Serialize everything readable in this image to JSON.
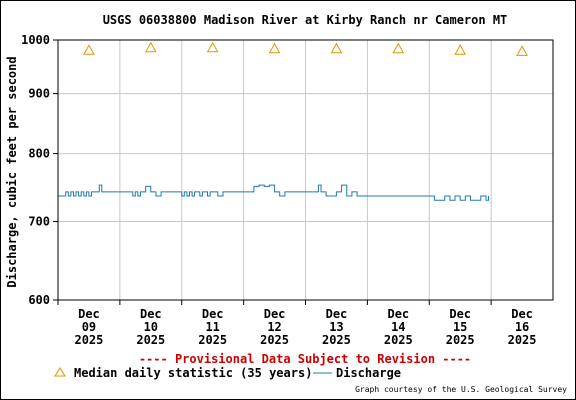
{
  "colors": {
    "median": "#e69500",
    "discharge": "#1f78b4",
    "provisional": "#cc0000",
    "grid": "#c8c8c8"
  },
  "chart_data": {
    "type": "line",
    "title": "USGS 06038800 Madison River at Kirby Ranch nr Cameron MT",
    "ylabel": "Discharge, cubic feet per second",
    "yscale": "log",
    "ylim": [
      600,
      1000
    ],
    "yticks": [
      {
        "value": 600,
        "label": "600"
      },
      {
        "value": 700,
        "label": "700"
      },
      {
        "value": 800,
        "label": "800"
      },
      {
        "value": 900,
        "label": "900"
      },
      {
        "value": 1000,
        "label": "1000"
      }
    ],
    "xlim": [
      "2025-12-09T00:00",
      "2025-12-17T00:00"
    ],
    "xticks": [
      {
        "day": "Dec",
        "date": "09",
        "year": "2025"
      },
      {
        "day": "Dec",
        "date": "10",
        "year": "2025"
      },
      {
        "day": "Dec",
        "date": "11",
        "year": "2025"
      },
      {
        "day": "Dec",
        "date": "12",
        "year": "2025"
      },
      {
        "day": "Dec",
        "date": "13",
        "year": "2025"
      },
      {
        "day": "Dec",
        "date": "14",
        "year": "2025"
      },
      {
        "day": "Dec",
        "date": "15",
        "year": "2025"
      },
      {
        "day": "Dec",
        "date": "16",
        "year": "2025"
      }
    ],
    "series": [
      {
        "name": "Median daily statistic (35 years)",
        "kind": "marker",
        "marker": "triangle",
        "x": [
          "2025-12-09T12:00",
          "2025-12-10T12:00",
          "2025-12-11T12:00",
          "2025-12-12T12:00",
          "2025-12-13T12:00",
          "2025-12-14T12:00",
          "2025-12-15T12:00",
          "2025-12-16T12:00"
        ],
        "values": [
          980,
          985,
          985,
          983,
          983,
          983,
          980,
          978
        ]
      },
      {
        "name": "Discharge",
        "kind": "line",
        "x": [
          "2025-12-09T00:00",
          "2025-12-09T02:00",
          "2025-12-09T03:00",
          "2025-12-09T04:00",
          "2025-12-09T05:00",
          "2025-12-09T06:00",
          "2025-12-09T07:00",
          "2025-12-09T08:00",
          "2025-12-09T09:00",
          "2025-12-09T10:00",
          "2025-12-09T11:00",
          "2025-12-09T12:00",
          "2025-12-09T13:00",
          "2025-12-09T14:00",
          "2025-12-09T15:00",
          "2025-12-09T16:00",
          "2025-12-09T17:00",
          "2025-12-09T18:00",
          "2025-12-09T20:00",
          "2025-12-10T00:00",
          "2025-12-10T04:00",
          "2025-12-10T05:00",
          "2025-12-10T06:00",
          "2025-12-10T07:00",
          "2025-12-10T08:00",
          "2025-12-10T09:00",
          "2025-12-10T10:00",
          "2025-12-10T12:00",
          "2025-12-10T14:00",
          "2025-12-10T16:00",
          "2025-12-10T20:00",
          "2025-12-11T00:00",
          "2025-12-11T01:00",
          "2025-12-11T02:00",
          "2025-12-11T03:00",
          "2025-12-11T04:00",
          "2025-12-11T05:00",
          "2025-12-11T06:00",
          "2025-12-11T07:00",
          "2025-12-11T08:00",
          "2025-12-11T09:00",
          "2025-12-11T10:00",
          "2025-12-11T11:00",
          "2025-12-11T12:00",
          "2025-12-11T14:00",
          "2025-12-11T16:00",
          "2025-12-11T18:00",
          "2025-12-11T20:00",
          "2025-12-12T00:00",
          "2025-12-12T02:00",
          "2025-12-12T04:00",
          "2025-12-12T06:00",
          "2025-12-12T08:00",
          "2025-12-12T10:00",
          "2025-12-12T12:00",
          "2025-12-12T14:00",
          "2025-12-12T16:00",
          "2025-12-12T18:00",
          "2025-12-12T20:00",
          "2025-12-13T00:00",
          "2025-12-13T04:00",
          "2025-12-13T05:00",
          "2025-12-13T06:00",
          "2025-12-13T08:00",
          "2025-12-13T12:00",
          "2025-12-13T14:00",
          "2025-12-13T16:00",
          "2025-12-13T18:00",
          "2025-12-13T20:00",
          "2025-12-14T00:00",
          "2025-12-14T04:00",
          "2025-12-14T08:00",
          "2025-12-14T12:00",
          "2025-12-14T16:00",
          "2025-12-14T20:00",
          "2025-12-15T00:00",
          "2025-12-15T02:00",
          "2025-12-15T04:00",
          "2025-12-15T06:00",
          "2025-12-15T08:00",
          "2025-12-15T10:00",
          "2025-12-15T12:00",
          "2025-12-15T14:00",
          "2025-12-15T16:00",
          "2025-12-15T18:00",
          "2025-12-15T20:00",
          "2025-12-15T22:00",
          "2025-12-15T23:00"
        ],
        "values": [
          736,
          736,
          742,
          736,
          742,
          736,
          742,
          736,
          742,
          736,
          742,
          736,
          742,
          742,
          742,
          752,
          742,
          742,
          742,
          742,
          742,
          736,
          742,
          736,
          742,
          742,
          750,
          742,
          736,
          742,
          742,
          736,
          742,
          736,
          742,
          736,
          742,
          742,
          736,
          742,
          742,
          736,
          742,
          742,
          736,
          742,
          742,
          742,
          742,
          742,
          750,
          752,
          750,
          752,
          742,
          736,
          742,
          742,
          742,
          742,
          742,
          752,
          742,
          736,
          742,
          752,
          736,
          742,
          736,
          736,
          736,
          736,
          736,
          736,
          736,
          736,
          730,
          730,
          736,
          730,
          736,
          730,
          736,
          730,
          730,
          736,
          730,
          736
        ]
      }
    ],
    "annotations": {
      "provisional": "---- Provisional Data Subject to Revision ----",
      "credit": "Graph courtesy of the U.S. Geological Survey"
    },
    "legend": {
      "position": "bottom-left",
      "median_label": "Median daily statistic (35 years)",
      "discharge_label": "Discharge"
    },
    "grid": true
  }
}
